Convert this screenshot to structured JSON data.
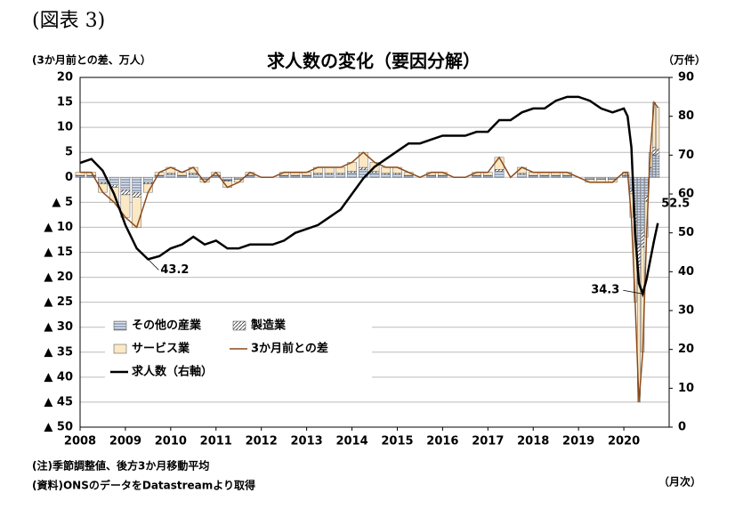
{
  "header": "(図表 3)",
  "chart_data": {
    "type": "bar",
    "title": "求人数の変化（要因分解）",
    "y_label": "(3か月前との差、万人）",
    "y2_label": "（万件）",
    "x_label": "（月次）",
    "xlim": [
      2008,
      2021
    ],
    "xticks": [
      2008,
      2009,
      2010,
      2011,
      2012,
      2013,
      2014,
      2015,
      2016,
      2017,
      2018,
      2019,
      2020
    ],
    "ylim": [
      -50,
      20
    ],
    "yticks": [
      20,
      15,
      10,
      5,
      0,
      {
        "value": -5,
        "label": "▲ 5"
      },
      {
        "value": -10,
        "label": "▲ 10"
      },
      {
        "value": -15,
        "label": "▲ 15"
      },
      {
        "value": -20,
        "label": "▲ 20"
      },
      {
        "value": -25,
        "label": "▲ 25"
      },
      {
        "value": -30,
        "label": "▲ 30"
      },
      {
        "value": -35,
        "label": "▲ 35"
      },
      {
        "value": -40,
        "label": "▲ 40"
      },
      {
        "value": -45,
        "label": "▲ 45"
      },
      {
        "value": -50,
        "label": "▲ 50"
      }
    ],
    "y2lim": [
      0,
      90
    ],
    "y2ticks": [
      0,
      10,
      20,
      30,
      40,
      50,
      60,
      70,
      80,
      90
    ],
    "grid": true,
    "x": [
      2008,
      2008.25,
      2008.5,
      2008.75,
      2009,
      2009.25,
      2009.5,
      2009.75,
      2010,
      2010.25,
      2010.5,
      2010.75,
      2011,
      2011.25,
      2011.5,
      2011.75,
      2012,
      2012.25,
      2012.5,
      2012.75,
      2013,
      2013.25,
      2013.5,
      2013.75,
      2014,
      2014.25,
      2014.5,
      2014.75,
      2015,
      2015.25,
      2015.5,
      2015.75,
      2016,
      2016.25,
      2016.5,
      2016.75,
      2017,
      2017.25,
      2017.5,
      2017.75,
      2018,
      2018.25,
      2018.5,
      2018.75,
      2019,
      2019.25,
      2019.5,
      2019.75,
      2020,
      2020.083,
      2020.167,
      2020.25,
      2020.333,
      2020.417,
      2020.5,
      2020.583,
      2020.667,
      2020.75
    ],
    "series": [
      {
        "name": "その他の産業",
        "kind": "bar",
        "pattern": "horizontal",
        "color": "#5b6f8f",
        "values": [
          0.3,
          0.3,
          -1,
          -1.5,
          -2.5,
          -3,
          -1,
          0.3,
          0.6,
          0.3,
          0.6,
          -0.3,
          0.3,
          -0.6,
          -0.3,
          0.3,
          0,
          0,
          0.3,
          0.3,
          0.3,
          0.6,
          0.6,
          0.6,
          0.9,
          1.5,
          0.9,
          0.6,
          0.6,
          0.3,
          0,
          0.3,
          0.3,
          0,
          0,
          0.3,
          0.3,
          1.2,
          0,
          0.6,
          0.3,
          0.3,
          0.3,
          0.3,
          0,
          -0.3,
          -0.3,
          -0.3,
          0.3,
          0.3,
          -2.4,
          -7.5,
          -13.5,
          -10.5,
          -3.6,
          1.5,
          4.5,
          4.2
        ]
      },
      {
        "name": "製造業",
        "kind": "bar",
        "pattern": "diagonal",
        "color": "#333333",
        "values": [
          0.1,
          0.1,
          -0.3,
          -0.5,
          -1,
          -1,
          -0.3,
          0.1,
          0.2,
          0.1,
          0.2,
          -0.1,
          0.1,
          -0.2,
          -0.1,
          0.1,
          0,
          0,
          0.1,
          0.1,
          0.1,
          0.2,
          0.2,
          0.2,
          0.3,
          0.5,
          0.3,
          0.2,
          0.2,
          0.1,
          0,
          0.1,
          0.1,
          0,
          0,
          0.1,
          0.1,
          0.4,
          0,
          0.2,
          0.1,
          0.1,
          0.1,
          0.1,
          0,
          -0.1,
          -0.1,
          -0.1,
          0.1,
          0.1,
          -0.8,
          -2.5,
          -4.5,
          -3.5,
          -1.2,
          0.5,
          1.5,
          1.4
        ]
      },
      {
        "name": "サービス業",
        "kind": "bar",
        "pattern": "solid",
        "color": "#fbe8c4",
        "values": [
          0.6,
          0.6,
          -1.7,
          -3,
          -4.5,
          -6,
          -1.7,
          0.6,
          1.2,
          0.6,
          1.2,
          -0.6,
          0.6,
          -1.2,
          -0.6,
          0.6,
          0,
          0,
          0.6,
          0.6,
          0.6,
          1.2,
          1.2,
          1.2,
          1.8,
          3,
          1.8,
          1.2,
          1.2,
          0.6,
          0,
          0.6,
          0.6,
          0,
          0,
          0.6,
          0.6,
          2.4,
          0,
          1.2,
          0.6,
          0.6,
          0.6,
          0.6,
          0,
          -0.6,
          -0.6,
          -0.6,
          0.6,
          0.6,
          -4.8,
          -15,
          -27,
          -21,
          -7.2,
          3,
          9,
          8.4
        ]
      },
      {
        "name": "3か月前との差",
        "kind": "line",
        "color": "#8b4a1c",
        "values": [
          1,
          1,
          -3,
          -5,
          -8,
          -10,
          -3,
          1,
          2,
          1,
          2,
          -1,
          1,
          -2,
          -1,
          1,
          0,
          0,
          1,
          1,
          1,
          2,
          2,
          2,
          3,
          5,
          3,
          2,
          2,
          1,
          0,
          1,
          1,
          0,
          0,
          1,
          1,
          4,
          0,
          2,
          1,
          1,
          1,
          1,
          0,
          -1,
          -1,
          -1,
          1,
          1,
          -8,
          -25,
          -45,
          -35,
          -12,
          5,
          15,
          14
        ]
      },
      {
        "name": "求人数（右軸）",
        "kind": "line",
        "axis": "y2",
        "color": "#000000",
        "values": [
          68,
          69,
          66,
          60,
          52,
          46,
          43.2,
          44,
          46,
          47,
          49,
          47,
          48,
          46,
          46,
          47,
          47,
          47,
          48,
          50,
          51,
          52,
          54,
          56,
          60,
          64,
          67,
          69,
          71,
          73,
          73,
          74,
          75,
          75,
          75,
          76,
          76,
          79,
          79,
          81,
          82,
          82,
          84,
          85,
          85,
          84,
          82,
          81,
          82,
          80,
          72,
          50,
          37,
          34.3,
          38,
          43,
          48,
          52.5
        ]
      }
    ],
    "annotations": [
      "43.2",
      "34.3",
      "52.5"
    ],
    "notes": [
      "(注)季節調整値、後方3か月移動平均",
      "(資料)ONSのデータをDatastreamより取得"
    ]
  }
}
